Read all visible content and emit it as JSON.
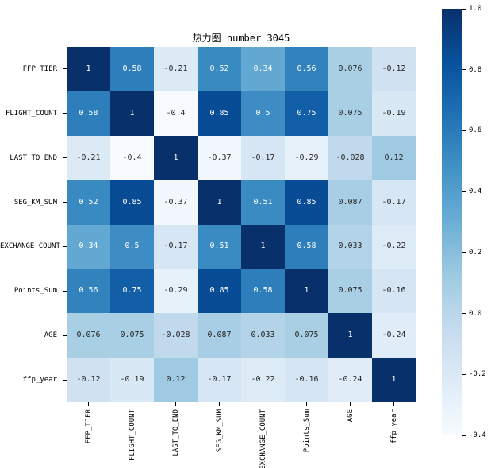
{
  "chart_data": {
    "type": "heatmap",
    "title": "热力图 number 3045",
    "categories": [
      "FFP_TIER",
      "FLIGHT_COUNT",
      "LAST_TO_END",
      "SEG_KM_SUM",
      "EXCHANGE_COUNT",
      "Points_Sum",
      "AGE",
      "ffp_year"
    ],
    "matrix": [
      [
        1,
        0.58,
        -0.21,
        0.52,
        0.34,
        0.56,
        0.076,
        -0.12
      ],
      [
        0.58,
        1,
        -0.4,
        0.85,
        0.5,
        0.75,
        0.075,
        -0.19
      ],
      [
        -0.21,
        -0.4,
        1,
        -0.37,
        -0.17,
        -0.29,
        -0.028,
        0.12
      ],
      [
        0.52,
        0.85,
        -0.37,
        1,
        0.51,
        0.85,
        0.087,
        -0.17
      ],
      [
        0.34,
        0.5,
        -0.17,
        0.51,
        1,
        0.58,
        0.033,
        -0.22
      ],
      [
        0.56,
        0.75,
        -0.29,
        0.85,
        0.58,
        1,
        0.075,
        -0.16
      ],
      [
        0.076,
        0.075,
        -0.028,
        0.087,
        0.033,
        0.075,
        1,
        -0.24
      ],
      [
        -0.12,
        -0.19,
        0.12,
        -0.17,
        -0.22,
        -0.16,
        -0.24,
        1
      ]
    ],
    "vmin": -0.4,
    "vmax": 1.0,
    "colormap": {
      "name": "Blues",
      "stops": [
        "#f7fbff",
        "#deebf7",
        "#c6dbef",
        "#9ecae1",
        "#6baed6",
        "#4292c6",
        "#2171b5",
        "#08519c",
        "#08306b"
      ]
    },
    "colorbar_ticks": [
      "1.0",
      "0.8",
      "0.6",
      "0.4",
      "0.2",
      "0.0",
      "-0.2",
      "-0.4"
    ],
    "annotation_colors": {
      "light_text": "#ffffff",
      "dark_text": "#262626"
    },
    "legend_position": "right",
    "grid": false
  }
}
